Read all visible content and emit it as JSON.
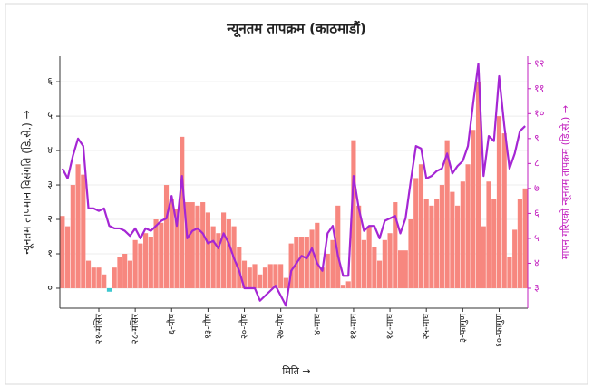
{
  "chart_data": {
    "type": "bar-line",
    "title": "न्यूनतम तापक्रम (काठमाडौं)",
    "x_label": "मिति →",
    "y_label": "न्यूनतम तापमान विसंगति (डि.से.) →",
    "y2_label": "मापन गरिएको न्यूनतम तापक्रम (डि.से.) →",
    "categories": [
      null,
      null,
      null,
      null,
      null,
      null,
      null,
      "२१-मंसिर",
      null,
      null,
      null,
      null,
      null,
      null,
      "२८-मंसिर",
      null,
      null,
      null,
      null,
      null,
      null,
      "६-पौष",
      null,
      null,
      null,
      null,
      null,
      null,
      "१३-पौष",
      null,
      null,
      null,
      null,
      null,
      null,
      "२०-पौष",
      null,
      null,
      null,
      null,
      null,
      null,
      "२७-पौष",
      null,
      null,
      null,
      null,
      null,
      null,
      "४-माघ",
      null,
      null,
      null,
      null,
      null,
      null,
      "११-माघ",
      null,
      null,
      null,
      null,
      null,
      null,
      "१८-माघ",
      null,
      null,
      null,
      null,
      null,
      null,
      "२५-माघ",
      null,
      null,
      null,
      null,
      null,
      null,
      "३-फागुण",
      null,
      null,
      null,
      null,
      null,
      null,
      "१०-फागुण",
      null,
      null,
      null,
      null,
      null
    ],
    "series": [
      {
        "type": "bar",
        "color": "#f7877f",
        "negative_color": "#3cc8d0",
        "values": [
          2.1,
          1.8,
          3.0,
          3.6,
          3.3,
          0.8,
          0.6,
          0.6,
          0.4,
          -0.1,
          0.6,
          0.9,
          1.0,
          0.8,
          1.4,
          1.3,
          1.6,
          1.5,
          2.0,
          1.9,
          3.0,
          2.6,
          2.3,
          4.4,
          2.5,
          2.5,
          2.4,
          2.5,
          2.2,
          1.8,
          1.6,
          2.2,
          2.0,
          1.8,
          1.2,
          0.8,
          0.6,
          0.7,
          0.4,
          0.6,
          0.7,
          0.7,
          0.7,
          0.3,
          1.3,
          1.5,
          1.5,
          1.5,
          1.7,
          1.9,
          0.6,
          1.0,
          1.4,
          2.4,
          0.1,
          0.2,
          4.3,
          2.4,
          1.4,
          1.8,
          1.2,
          0.8,
          1.4,
          1.6,
          2.5,
          1.1,
          1.1,
          2.0,
          3.2,
          3.6,
          2.6,
          2.4,
          2.6,
          3.0,
          4.3,
          2.8,
          2.4,
          3.1,
          3.6,
          4.6,
          6.0,
          1.8,
          3.1,
          2.6,
          5.0,
          4.5,
          0.9,
          1.7,
          2.6,
          2.9
        ]
      },
      {
        "type": "line",
        "color": "#a526d4",
        "axis": "y2",
        "values": [
          7.8,
          7.4,
          8.3,
          9.0,
          8.7,
          6.2,
          6.2,
          6.1,
          6.2,
          5.5,
          5.4,
          5.4,
          5.3,
          5.1,
          5.4,
          5.0,
          5.4,
          5.3,
          5.5,
          5.7,
          5.8,
          6.7,
          5.5,
          7.5,
          5.0,
          5.3,
          5.4,
          5.2,
          4.8,
          4.9,
          4.6,
          5.2,
          4.8,
          4.2,
          3.7,
          3.0,
          3.0,
          3.0,
          2.5,
          2.7,
          2.9,
          3.1,
          2.7,
          2.3,
          3.7,
          4.0,
          4.3,
          4.2,
          4.6,
          4.0,
          3.7,
          5.2,
          5.5,
          4.3,
          3.5,
          3.5,
          7.5,
          6.2,
          5.3,
          5.5,
          5.5,
          5.0,
          5.7,
          5.8,
          5.9,
          5.2,
          5.8,
          7.3,
          8.7,
          8.6,
          7.4,
          7.5,
          7.7,
          7.8,
          8.4,
          7.6,
          7.9,
          8.1,
          8.7,
          10.4,
          12.0,
          7.5,
          9.1,
          8.9,
          11.5,
          9.5,
          7.8,
          8.4,
          9.3,
          9.5
        ]
      }
    ],
    "ylim": [
      -0.58,
      6.74
    ],
    "yticks": [
      {
        "value": 0,
        "label": "०"
      },
      {
        "value": 1,
        "label": "१"
      },
      {
        "value": 2,
        "label": "२"
      },
      {
        "value": 3,
        "label": "३"
      },
      {
        "value": 4,
        "label": "४"
      },
      {
        "value": 5,
        "label": "५"
      },
      {
        "value": 6,
        "label": "६"
      }
    ],
    "y2lim": [
      2.2,
      12.3
    ],
    "y2ticks": [
      {
        "value": 3,
        "label": "३"
      },
      {
        "value": 4,
        "label": "४"
      },
      {
        "value": 5,
        "label": "५"
      },
      {
        "value": 6,
        "label": "६"
      },
      {
        "value": 7,
        "label": "७"
      },
      {
        "value": 8,
        "label": "८"
      },
      {
        "value": 9,
        "label": "९"
      },
      {
        "value": 10,
        "label": "१०"
      },
      {
        "value": 11,
        "label": "११"
      },
      {
        "value": 12,
        "label": "१२"
      }
    ],
    "y2_color": "#c21fbf",
    "grid": true
  }
}
